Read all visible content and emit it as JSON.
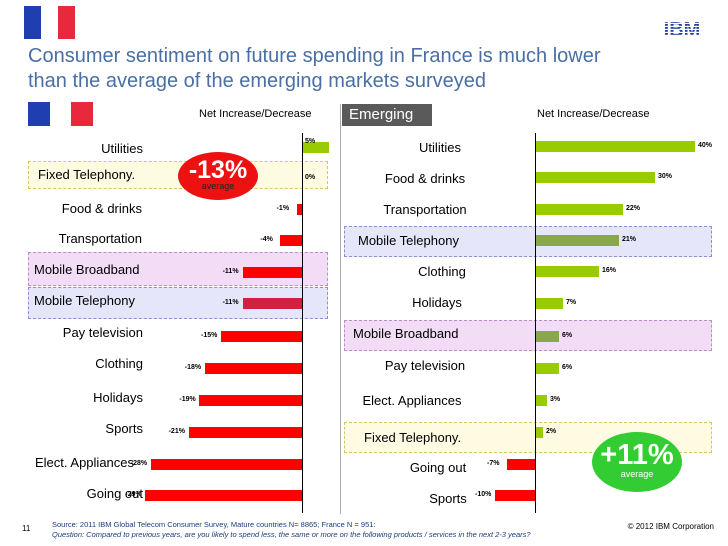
{
  "title_line1": "Consumer sentiment on future spending in France is much lower",
  "title_line2": "than the average of the emerging markets surveyed",
  "logo_text": "IBM",
  "colors": {
    "french_blue": "#1f3fb0",
    "french_red": "#e8293b",
    "title_blue": "#4a6fa5",
    "bar_red": "#ff0000",
    "bar_crimson": "#d42040",
    "bar_green": "#99cc00",
    "bar_olive": "#8aa84a",
    "bubble_red": "#ee1111",
    "bubble_green": "#33cc33"
  },
  "chart_data": [
    {
      "type": "bar",
      "orientation": "horizontal",
      "header": "Net Increase/Decrease",
      "categories": [
        "Utilities",
        "Fixed Telephony.",
        "Food & drinks",
        "Transportation",
        "Mobile Broadband",
        "Mobile Telephony",
        "Pay television",
        "Clothing",
        "Holidays",
        "Sports",
        "Elect. Appliances",
        "Going out"
      ],
      "values": [
        5,
        0,
        -1,
        -4,
        -11,
        -11,
        -15,
        -18,
        -19,
        -21,
        -28,
        -29
      ],
      "labels": [
        "5%",
        "0%",
        "-1%",
        "-4%",
        "-11%",
        "-11%",
        "-15%",
        "-18%",
        "-19%",
        "-21%",
        "-28%",
        "-29%"
      ],
      "bar_colors": [
        "#99cc00",
        "#ff0000",
        "#ff0000",
        "#ff0000",
        "#ff0000",
        "#d42040",
        "#ff0000",
        "#ff0000",
        "#ff0000",
        "#ff0000",
        "#ff0000",
        "#ff0000"
      ],
      "average_label": "-13%",
      "average_caption": "average"
    },
    {
      "type": "bar",
      "orientation": "horizontal",
      "header": "Net Increase/Decrease",
      "panel_label": "Emerging",
      "categories": [
        "Utilities",
        "Food & drinks",
        "Transportation",
        "Mobile Telephony",
        "Clothing",
        "Holidays",
        "Mobile Broadband",
        "Pay television",
        "Elect. Appliances",
        "Fixed Telephony.",
        "Going out",
        "Sports"
      ],
      "values": [
        40,
        30,
        22,
        21,
        16,
        7,
        6,
        6,
        3,
        2,
        -7,
        -10
      ],
      "labels": [
        "40%",
        "30%",
        "22%",
        "21%",
        "16%",
        "7%",
        "6%",
        "6%",
        "3%",
        "2%",
        "-7%",
        "-10%"
      ],
      "bar_colors": [
        "#99cc00",
        "#99cc00",
        "#99cc00",
        "#8aa84a",
        "#99cc00",
        "#99cc00",
        "#8aa84a",
        "#99cc00",
        "#99cc00",
        "#99cc00",
        "#ff0000",
        "#ff0000"
      ],
      "average_label": "+11%",
      "average_caption": "average"
    }
  ],
  "footer": {
    "page_number": "11",
    "source": "Source: 2011 IBM Global Telecom Consumer Survey, Mature countries  N= 8865; France N = 951:",
    "question": "Question: Compared to previous years, are you likely to spend less, the same or more on the following products / services in the next 2-3 years?",
    "copyright": "© 2012 IBM Corporation"
  }
}
